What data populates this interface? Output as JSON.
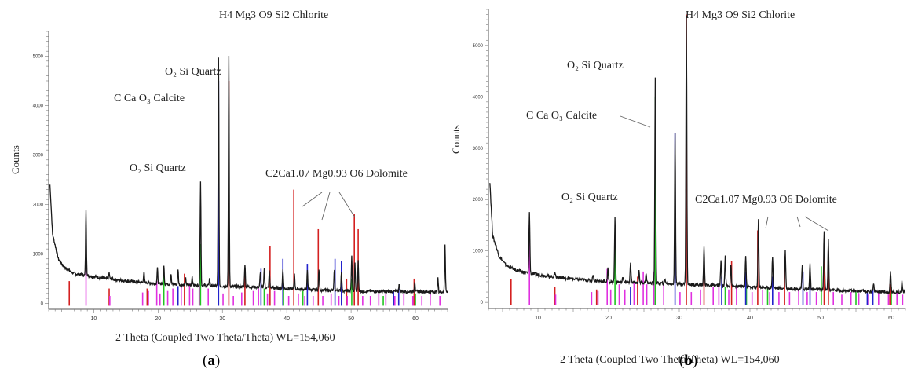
{
  "panels": [
    {
      "label_open": "(",
      "label_letter": "a",
      "label_close": ")",
      "ylabel": "Counts",
      "xlabel": "2 Theta (Coupled Two Theta/Theta) WL=154,060",
      "annotations": {
        "chlorite": "H4 Mg3 O9 Si2 Chlorite",
        "quartz_top": "O₂ Si Quartz",
        "calcite": "C Ca O₃ Calcite",
        "quartz_low": "O₂ Si Quartz",
        "dolomite": "C2Ca1.07 Mg0.93 O6 Dolomite"
      }
    },
    {
      "label_open": "(",
      "label_letter": "b",
      "label_close": ")",
      "ylabel": "Counts",
      "xlabel": "2 Theta (Coupled Two Theta/Theta) WL=154,060",
      "annotations": {
        "chlorite": "H4 Mg3 O9 Si2 Chlorite",
        "quartz_top": "O₂ Si Quartz",
        "calcite": "C Ca O₃ Calcite",
        "quartz_low": "O₂ Si Quartz",
        "dolomite": "C2Ca1.07 Mg0.93 O6 Dolomite"
      }
    }
  ],
  "chart_data": [
    {
      "type": "line",
      "ylabel": "Counts",
      "xlabel": "2 Theta (Coupled Two Theta/Theta) WL=154,060",
      "xlim": [
        3,
        65
      ],
      "ylim": [
        -120,
        5500
      ],
      "xticks": [
        10,
        20,
        30,
        40,
        50,
        60
      ],
      "yticks": [
        0,
        1000,
        2000,
        3000,
        4000,
        5000
      ],
      "pattern": {
        "baseline": [
          [
            3.2,
            2400
          ],
          [
            3.6,
            1400
          ],
          [
            4.5,
            900
          ],
          [
            5.5,
            720
          ],
          [
            7,
            600
          ],
          [
            9,
            560
          ],
          [
            12,
            500
          ],
          [
            16,
            440
          ],
          [
            20,
            400
          ],
          [
            25,
            370
          ],
          [
            30,
            350
          ],
          [
            35,
            330
          ],
          [
            40,
            300
          ],
          [
            45,
            270
          ],
          [
            50,
            250
          ],
          [
            55,
            240
          ],
          [
            60,
            240
          ],
          [
            65,
            230
          ]
        ],
        "peaks": [
          [
            8.8,
            1900
          ],
          [
            12.4,
            620
          ],
          [
            17.8,
            650
          ],
          [
            19.9,
            700
          ],
          [
            20.9,
            750
          ],
          [
            22.0,
            600
          ],
          [
            23.1,
            700
          ],
          [
            24.3,
            500
          ],
          [
            25.3,
            550
          ],
          [
            26.6,
            2480
          ],
          [
            28.0,
            500
          ],
          [
            29.4,
            5000
          ],
          [
            31.0,
            5000
          ],
          [
            33.5,
            800
          ],
          [
            35.9,
            650
          ],
          [
            36.5,
            700
          ],
          [
            37.3,
            650
          ],
          [
            39.4,
            700
          ],
          [
            41.2,
            600
          ],
          [
            43.2,
            650
          ],
          [
            45.0,
            700
          ],
          [
            47.4,
            700
          ],
          [
            48.5,
            650
          ],
          [
            50.1,
            950
          ],
          [
            50.6,
            800
          ],
          [
            51.1,
            850
          ],
          [
            57.5,
            400
          ],
          [
            59.9,
            450
          ],
          [
            63.5,
            500
          ],
          [
            64.6,
            1200
          ]
        ]
      },
      "reference_lines": [
        {
          "phase": "Quartz",
          "color": "#22c422",
          "peaks": [
            [
              20.9,
              600
            ],
            [
              26.6,
              1200
            ],
            [
              36.5,
              300
            ],
            [
              39.5,
              300
            ],
            [
              42.5,
              250
            ],
            [
              50.1,
              500
            ],
            [
              55.0,
              150
            ],
            [
              60.0,
              200
            ]
          ]
        },
        {
          "phase": "Calcite",
          "color": "#2222cc",
          "peaks": [
            [
              23.1,
              350
            ],
            [
              29.4,
              4500
            ],
            [
              36.0,
              700
            ],
            [
              39.4,
              900
            ],
            [
              43.2,
              800
            ],
            [
              47.5,
              900
            ],
            [
              48.5,
              850
            ],
            [
              56.6,
              250
            ],
            [
              57.4,
              300
            ]
          ]
        },
        {
          "phase": "Dolomite",
          "color": "#d42020",
          "peaks": [
            [
              6.2,
              450
            ],
            [
              12.4,
              300
            ],
            [
              18.3,
              300
            ],
            [
              24.1,
              600
            ],
            [
              31.0,
              4500
            ],
            [
              33.5,
              600
            ],
            [
              37.4,
              1150
            ],
            [
              41.1,
              2300
            ],
            [
              44.9,
              1500
            ],
            [
              49.3,
              500
            ],
            [
              50.5,
              1800
            ],
            [
              51.1,
              1500
            ],
            [
              59.8,
              500
            ]
          ]
        },
        {
          "phase": "Chlorite",
          "color": "#e030e0",
          "peaks": [
            [
              8.8,
              1500
            ],
            [
              12.5,
              150
            ],
            [
              17.6,
              220
            ],
            [
              18.5,
              250
            ],
            [
              19.8,
              450
            ],
            [
              20.3,
              200
            ],
            [
              21.5,
              250
            ],
            [
              22.3,
              300
            ],
            [
              23.6,
              350
            ],
            [
              24.9,
              400
            ],
            [
              25.4,
              300
            ],
            [
              26.4,
              400
            ],
            [
              27.8,
              300
            ],
            [
              30.1,
              200
            ],
            [
              31.7,
              150
            ],
            [
              33.0,
              220
            ],
            [
              34.8,
              250
            ],
            [
              35.6,
              300
            ],
            [
              37.0,
              200
            ],
            [
              38.1,
              250
            ],
            [
              40.3,
              150
            ],
            [
              41.8,
              200
            ],
            [
              42.8,
              150
            ],
            [
              44.1,
              150
            ],
            [
              45.6,
              150
            ],
            [
              46.9,
              200
            ],
            [
              48.1,
              150
            ],
            [
              49.4,
              150
            ],
            [
              51.8,
              150
            ],
            [
              53.0,
              150
            ],
            [
              54.3,
              200
            ],
            [
              55.4,
              180
            ],
            [
              56.8,
              150
            ],
            [
              58.2,
              200
            ],
            [
              59.6,
              150
            ],
            [
              61.0,
              150
            ],
            [
              62.3,
              200
            ],
            [
              63.8,
              150
            ]
          ]
        }
      ]
    },
    {
      "type": "line",
      "ylabel": "Counts",
      "xlabel": "2 Theta (Coupled Two Theta/Theta) WL=154,060",
      "xlim": [
        3,
        62
      ],
      "ylim": [
        -120,
        5700
      ],
      "xticks": [
        10,
        20,
        30,
        40,
        50,
        60
      ],
      "yticks": [
        0,
        1000,
        2000,
        3000,
        4000,
        5000
      ],
      "pattern": {
        "baseline": [
          [
            3.2,
            2350
          ],
          [
            3.6,
            1300
          ],
          [
            4.5,
            900
          ],
          [
            5.5,
            720
          ],
          [
            7,
            620
          ],
          [
            9,
            560
          ],
          [
            12,
            500
          ],
          [
            16,
            440
          ],
          [
            20,
            400
          ],
          [
            25,
            380
          ],
          [
            30,
            360
          ],
          [
            35,
            330
          ],
          [
            40,
            300
          ],
          [
            45,
            270
          ],
          [
            50,
            250
          ],
          [
            55,
            220
          ],
          [
            60,
            200
          ],
          [
            62,
            200
          ]
        ],
        "peaks": [
          [
            8.8,
            1750
          ],
          [
            12.4,
            600
          ],
          [
            17.8,
            550
          ],
          [
            19.9,
            650
          ],
          [
            20.9,
            1650
          ],
          [
            22.0,
            500
          ],
          [
            23.1,
            750
          ],
          [
            24.3,
            600
          ],
          [
            25.3,
            550
          ],
          [
            26.6,
            4400
          ],
          [
            28.0,
            450
          ],
          [
            29.4,
            3300
          ],
          [
            31.0,
            5600
          ],
          [
            33.5,
            1100
          ],
          [
            35.9,
            800
          ],
          [
            36.5,
            900
          ],
          [
            37.3,
            750
          ],
          [
            39.4,
            900
          ],
          [
            41.2,
            1600
          ],
          [
            43.2,
            900
          ],
          [
            45.0,
            1000
          ],
          [
            47.4,
            700
          ],
          [
            48.5,
            750
          ],
          [
            50.5,
            1400
          ],
          [
            51.1,
            1200
          ],
          [
            57.5,
            350
          ],
          [
            59.9,
            600
          ],
          [
            61.5,
            400
          ]
        ]
      },
      "reference_lines": [
        {
          "phase": "Quartz",
          "color": "#22c422",
          "peaks": [
            [
              20.9,
              1150
            ],
            [
              26.6,
              4000
            ],
            [
              36.5,
              300
            ],
            [
              39.5,
              400
            ],
            [
              42.5,
              300
            ],
            [
              50.1,
              700
            ],
            [
              55.0,
              200
            ],
            [
              60.0,
              300
            ]
          ]
        },
        {
          "phase": "Calcite",
          "color": "#2222cc",
          "peaks": [
            [
              23.1,
              300
            ],
            [
              29.4,
              3300
            ],
            [
              36.0,
              500
            ],
            [
              39.4,
              600
            ],
            [
              43.2,
              500
            ],
            [
              47.5,
              600
            ],
            [
              48.5,
              550
            ],
            [
              56.6,
              200
            ],
            [
              57.4,
              250
            ]
          ]
        },
        {
          "phase": "Dolomite",
          "color": "#d42020",
          "peaks": [
            [
              6.2,
              450
            ],
            [
              12.4,
              300
            ],
            [
              18.3,
              250
            ],
            [
              24.1,
              500
            ],
            [
              31.0,
              5600
            ],
            [
              33.5,
              550
            ],
            [
              37.4,
              800
            ],
            [
              41.1,
              1400
            ],
            [
              44.9,
              900
            ],
            [
              50.5,
              1250
            ],
            [
              51.1,
              1000
            ],
            [
              59.8,
              350
            ]
          ]
        },
        {
          "phase": "Chlorite",
          "color": "#e030e0",
          "peaks": [
            [
              8.8,
              1500
            ],
            [
              12.5,
              150
            ],
            [
              17.6,
              200
            ],
            [
              18.5,
              220
            ],
            [
              19.8,
              650
            ],
            [
              20.3,
              250
            ],
            [
              21.5,
              350
            ],
            [
              22.3,
              250
            ],
            [
              23.6,
              400
            ],
            [
              24.9,
              600
            ],
            [
              25.4,
              350
            ],
            [
              26.4,
              600
            ],
            [
              27.8,
              350
            ],
            [
              30.1,
              200
            ],
            [
              31.7,
              200
            ],
            [
              33.0,
              250
            ],
            [
              34.8,
              300
            ],
            [
              35.6,
              300
            ],
            [
              37.0,
              250
            ],
            [
              38.1,
              300
            ],
            [
              40.3,
              200
            ],
            [
              41.8,
              250
            ],
            [
              42.8,
              200
            ],
            [
              44.1,
              200
            ],
            [
              45.6,
              200
            ],
            [
              46.9,
              250
            ],
            [
              48.1,
              200
            ],
            [
              49.4,
              200
            ],
            [
              51.8,
              200
            ],
            [
              53.0,
              150
            ],
            [
              54.3,
              200
            ],
            [
              55.4,
              180
            ],
            [
              56.8,
              150
            ],
            [
              58.2,
              200
            ],
            [
              59.6,
              150
            ],
            [
              60.8,
              200
            ],
            [
              61.6,
              150
            ]
          ]
        }
      ]
    }
  ]
}
